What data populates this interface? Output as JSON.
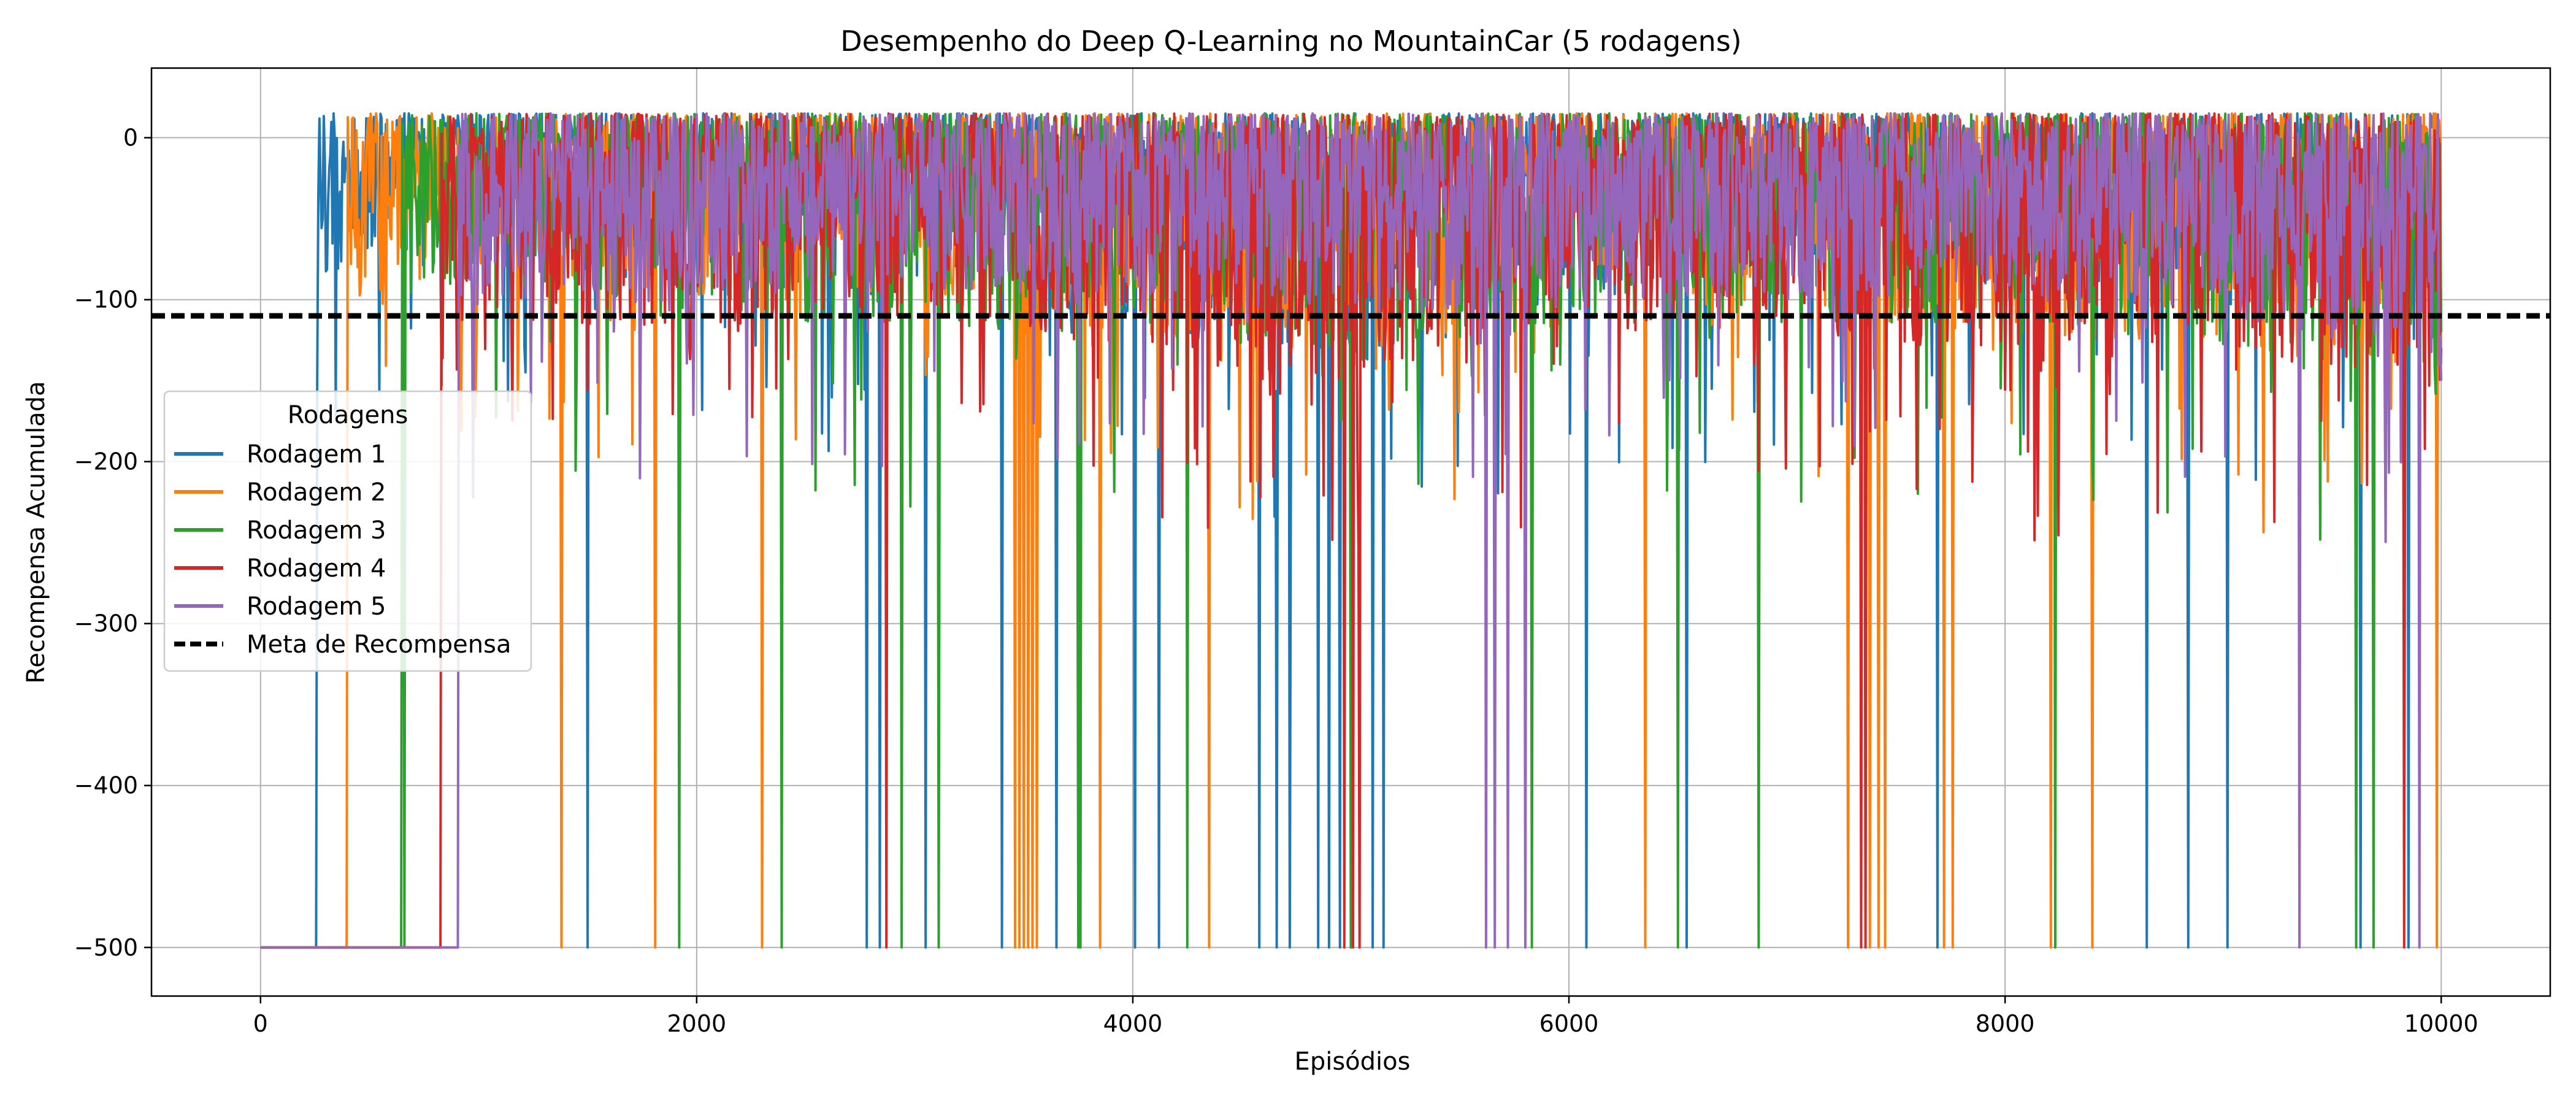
{
  "chart_data": {
    "type": "line",
    "title": "Desempenho do Deep Q-Learning no MountainCar (5 rodagens)",
    "xlabel": "Episódios",
    "ylabel": "Recompensa Acumulada",
    "xlim": [
      -500,
      10500
    ],
    "ylim": [
      -530,
      43
    ],
    "xticks": [
      0,
      2000,
      4000,
      6000,
      8000,
      10000
    ],
    "yticks": [
      0,
      -100,
      -200,
      -300,
      -400,
      -500
    ],
    "xtick_labels": [
      "0",
      "2000",
      "4000",
      "6000",
      "8000",
      "10000"
    ],
    "ytick_labels": [
      "0",
      "−100",
      "−200",
      "−300",
      "−400",
      "−500"
    ],
    "grid": true,
    "legend": {
      "title": "Rodagens",
      "placement": "center-left"
    },
    "episodes": 10000,
    "series": [
      {
        "name": "Rodagem 1",
        "color": "#1f77b4",
        "initial_value": -500,
        "solved_from_episode": 260,
        "band_x": [
          260,
          1000,
          2000,
          3000,
          4000,
          5000,
          5600,
          6000,
          7000,
          8000,
          9000,
          10000
        ],
        "band_low": [
          -90,
          -75,
          -95,
          -100,
          -110,
          -150,
          -120,
          -100,
          -95,
          -100,
          -105,
          -110
        ],
        "band_high": [
          15,
          15,
          15,
          15,
          15,
          15,
          15,
          15,
          15,
          15,
          15,
          15
        ],
        "deep_dips": [
          [
            1500,
            -500
          ],
          [
            2780,
            -500
          ],
          [
            2840,
            -500
          ],
          [
            3050,
            -500
          ],
          [
            3400,
            -500
          ],
          [
            3650,
            -500
          ],
          [
            4010,
            -500
          ],
          [
            4120,
            -500
          ],
          [
            4580,
            -500
          ],
          [
            4660,
            -500
          ],
          [
            4720,
            -500
          ],
          [
            4850,
            -500
          ],
          [
            4900,
            -500
          ],
          [
            4950,
            -500
          ],
          [
            5100,
            -500
          ],
          [
            5150,
            -500
          ],
          [
            6080,
            -500
          ],
          [
            6540,
            -500
          ],
          [
            7690,
            -500
          ],
          [
            8650,
            -500
          ],
          [
            8840,
            -500
          ],
          [
            9020,
            -500
          ],
          [
            9630,
            -500
          ],
          [
            9850,
            -500
          ]
        ],
        "last_value": -110
      },
      {
        "name": "Rodagem 2",
        "color": "#ff7f0e",
        "initial_value": -500,
        "solved_from_episode": 400,
        "band_x": [
          400,
          1000,
          2000,
          3000,
          4000,
          5000,
          5600,
          6000,
          7000,
          8000,
          9000,
          10000
        ],
        "band_low": [
          -100,
          -80,
          -100,
          -100,
          -120,
          -140,
          -120,
          -95,
          -110,
          -120,
          -130,
          -150
        ],
        "band_high": [
          15,
          15,
          15,
          15,
          15,
          15,
          15,
          15,
          15,
          15,
          15,
          15
        ],
        "deep_dips": [
          [
            1380,
            -500
          ],
          [
            1810,
            -500
          ],
          [
            2300,
            -500
          ],
          [
            3460,
            -500
          ],
          [
            3480,
            -500
          ],
          [
            3500,
            -500
          ],
          [
            3520,
            -500
          ],
          [
            3540,
            -500
          ],
          [
            3560,
            -500
          ],
          [
            3850,
            -500
          ],
          [
            4350,
            -500
          ],
          [
            5000,
            -500
          ],
          [
            6350,
            -500
          ],
          [
            7280,
            -500
          ],
          [
            7380,
            -500
          ],
          [
            7420,
            -500
          ],
          [
            7450,
            -500
          ],
          [
            7720,
            -500
          ],
          [
            7760,
            -500
          ],
          [
            8210,
            -500
          ],
          [
            8400,
            -500
          ],
          [
            9980,
            -500
          ]
        ],
        "last_value": -140
      },
      {
        "name": "Rodagem 3",
        "color": "#2ca02c",
        "initial_value": -500,
        "solved_from_episode": 650,
        "band_x": [
          650,
          1000,
          2000,
          3000,
          4000,
          5000,
          5600,
          6000,
          7000,
          8000,
          9000,
          10000
        ],
        "band_low": [
          -110,
          -90,
          -110,
          -120,
          -120,
          -140,
          -130,
          -110,
          -115,
          -120,
          -130,
          -150
        ],
        "band_high": [
          15,
          15,
          15,
          15,
          15,
          15,
          15,
          15,
          15,
          15,
          15,
          15
        ],
        "deep_dips": [
          [
            660,
            -500
          ],
          [
            1920,
            -500
          ],
          [
            2390,
            -500
          ],
          [
            2940,
            -500
          ],
          [
            3110,
            -500
          ],
          [
            3750,
            -500
          ],
          [
            3760,
            -500
          ],
          [
            4250,
            -500
          ],
          [
            5000,
            -500
          ],
          [
            5830,
            -500
          ],
          [
            6500,
            -500
          ],
          [
            6870,
            -500
          ],
          [
            8230,
            -500
          ],
          [
            9610,
            -500
          ],
          [
            9690,
            -500
          ]
        ],
        "last_value": -120
      },
      {
        "name": "Rodagem 4",
        "color": "#d62728",
        "initial_value": -500,
        "solved_from_episode": 830,
        "band_x": [
          830,
          1000,
          2000,
          3000,
          4000,
          5000,
          5600,
          6000,
          7000,
          8000,
          9000,
          10000
        ],
        "band_low": [
          -120,
          -110,
          -120,
          -110,
          -130,
          -160,
          -150,
          -120,
          -120,
          -140,
          -130,
          -160
        ],
        "band_high": [
          15,
          15,
          15,
          15,
          15,
          15,
          15,
          15,
          15,
          15,
          15,
          15
        ],
        "deep_dips": [
          [
            2870,
            -500
          ],
          [
            4970,
            -500
          ],
          [
            5010,
            -500
          ],
          [
            5040,
            -500
          ],
          [
            7340,
            -500
          ],
          [
            7360,
            -500
          ],
          [
            9830,
            -500
          ]
        ],
        "last_value": -130
      },
      {
        "name": "Rodagem 5",
        "color": "#9467bd",
        "initial_value": -500,
        "solved_from_episode": 910,
        "band_x": [
          910,
          1000,
          2000,
          3000,
          4000,
          5000,
          5600,
          5700,
          6000,
          7000,
          8000,
          9000,
          10000
        ],
        "band_low": [
          -120,
          -110,
          -100,
          -95,
          -100,
          -110,
          -110,
          -100,
          -100,
          -100,
          -100,
          -110,
          -150
        ],
        "band_high": [
          15,
          15,
          15,
          15,
          15,
          15,
          15,
          15,
          15,
          15,
          15,
          15,
          15
        ],
        "deep_dips": [
          [
            5620,
            -500
          ],
          [
            5660,
            -500
          ],
          [
            5720,
            -500
          ],
          [
            5800,
            -500
          ],
          [
            9350,
            -500
          ],
          [
            9900,
            -500
          ],
          [
            10000,
            -500
          ]
        ],
        "last_value": -150
      }
    ],
    "reference_lines": [
      {
        "name": "Meta de Recompensa",
        "y": -110,
        "color": "#000000",
        "style": "dashed"
      }
    ]
  }
}
